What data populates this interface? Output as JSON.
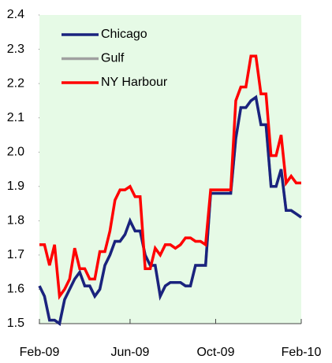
{
  "chart_data": {
    "type": "line",
    "categories": [
      "Feb-09",
      null,
      null,
      null,
      null,
      null,
      null,
      null,
      null,
      null,
      null,
      null,
      null,
      null,
      null,
      null,
      null,
      null,
      "Jun-09",
      null,
      null,
      null,
      null,
      null,
      null,
      null,
      null,
      null,
      null,
      null,
      null,
      null,
      null,
      null,
      null,
      "Oct-09",
      null,
      null,
      null,
      null,
      null,
      null,
      null,
      null,
      null,
      null,
      null,
      null,
      null,
      null,
      null,
      null,
      "Feb-10"
    ],
    "series": [
      {
        "name": "Chicago",
        "color": "#1a237e",
        "values": [
          1.61,
          1.58,
          1.51,
          1.51,
          1.5,
          1.57,
          1.6,
          1.63,
          1.65,
          1.61,
          1.61,
          1.58,
          1.6,
          1.67,
          1.7,
          1.74,
          1.74,
          1.76,
          1.8,
          1.77,
          1.77,
          1.7,
          1.67,
          1.67,
          1.58,
          1.61,
          1.62,
          1.62,
          1.62,
          1.61,
          1.61,
          1.67,
          1.67,
          1.67,
          1.88,
          1.88,
          1.88,
          1.88,
          1.88,
          2.04,
          2.13,
          2.13,
          2.15,
          2.16,
          2.08,
          2.08,
          1.9,
          1.9,
          1.95,
          1.83,
          1.83,
          1.82,
          1.81
        ]
      },
      {
        "name": "Gulf",
        "color": "#a0a0a0",
        "values": [
          1.61,
          1.58,
          1.51,
          1.51,
          1.5,
          1.57,
          1.6,
          1.63,
          1.65,
          1.61,
          1.61,
          1.58,
          1.6,
          1.67,
          1.7,
          1.74,
          1.74,
          1.76,
          1.8,
          1.77,
          1.77,
          1.7,
          1.67,
          1.67,
          1.58,
          1.61,
          1.62,
          1.62,
          1.62,
          1.61,
          1.61,
          1.67,
          1.67,
          1.67,
          1.88,
          1.88,
          1.88,
          1.88,
          1.88,
          2.04,
          2.13,
          2.13,
          2.15,
          2.16,
          2.08,
          2.08,
          1.9,
          1.9,
          1.95,
          1.83,
          1.83,
          1.82,
          1.81
        ]
      },
      {
        "name": "NY Harbour",
        "color": "#ff0000",
        "values": [
          1.73,
          1.73,
          1.67,
          1.73,
          1.58,
          1.6,
          1.63,
          1.72,
          1.66,
          1.66,
          1.63,
          1.63,
          1.71,
          1.71,
          1.77,
          1.86,
          1.89,
          1.89,
          1.9,
          1.87,
          1.87,
          1.66,
          1.66,
          1.72,
          1.7,
          1.73,
          1.73,
          1.72,
          1.73,
          1.75,
          1.75,
          1.74,
          1.74,
          1.73,
          1.89,
          1.89,
          1.89,
          1.89,
          1.89,
          2.15,
          2.19,
          2.19,
          2.28,
          2.28,
          2.17,
          2.17,
          1.99,
          1.99,
          2.05,
          1.91,
          1.93,
          1.91,
          1.91
        ]
      }
    ],
    "ylim": [
      1.5,
      2.4
    ],
    "yticks": [
      1.5,
      1.6,
      1.7,
      1.8,
      1.9,
      {
        "value": 2,
        "label": "2.0"
      },
      2.1,
      2.2,
      2.3,
      2.4
    ],
    "legend": "top-left"
  }
}
